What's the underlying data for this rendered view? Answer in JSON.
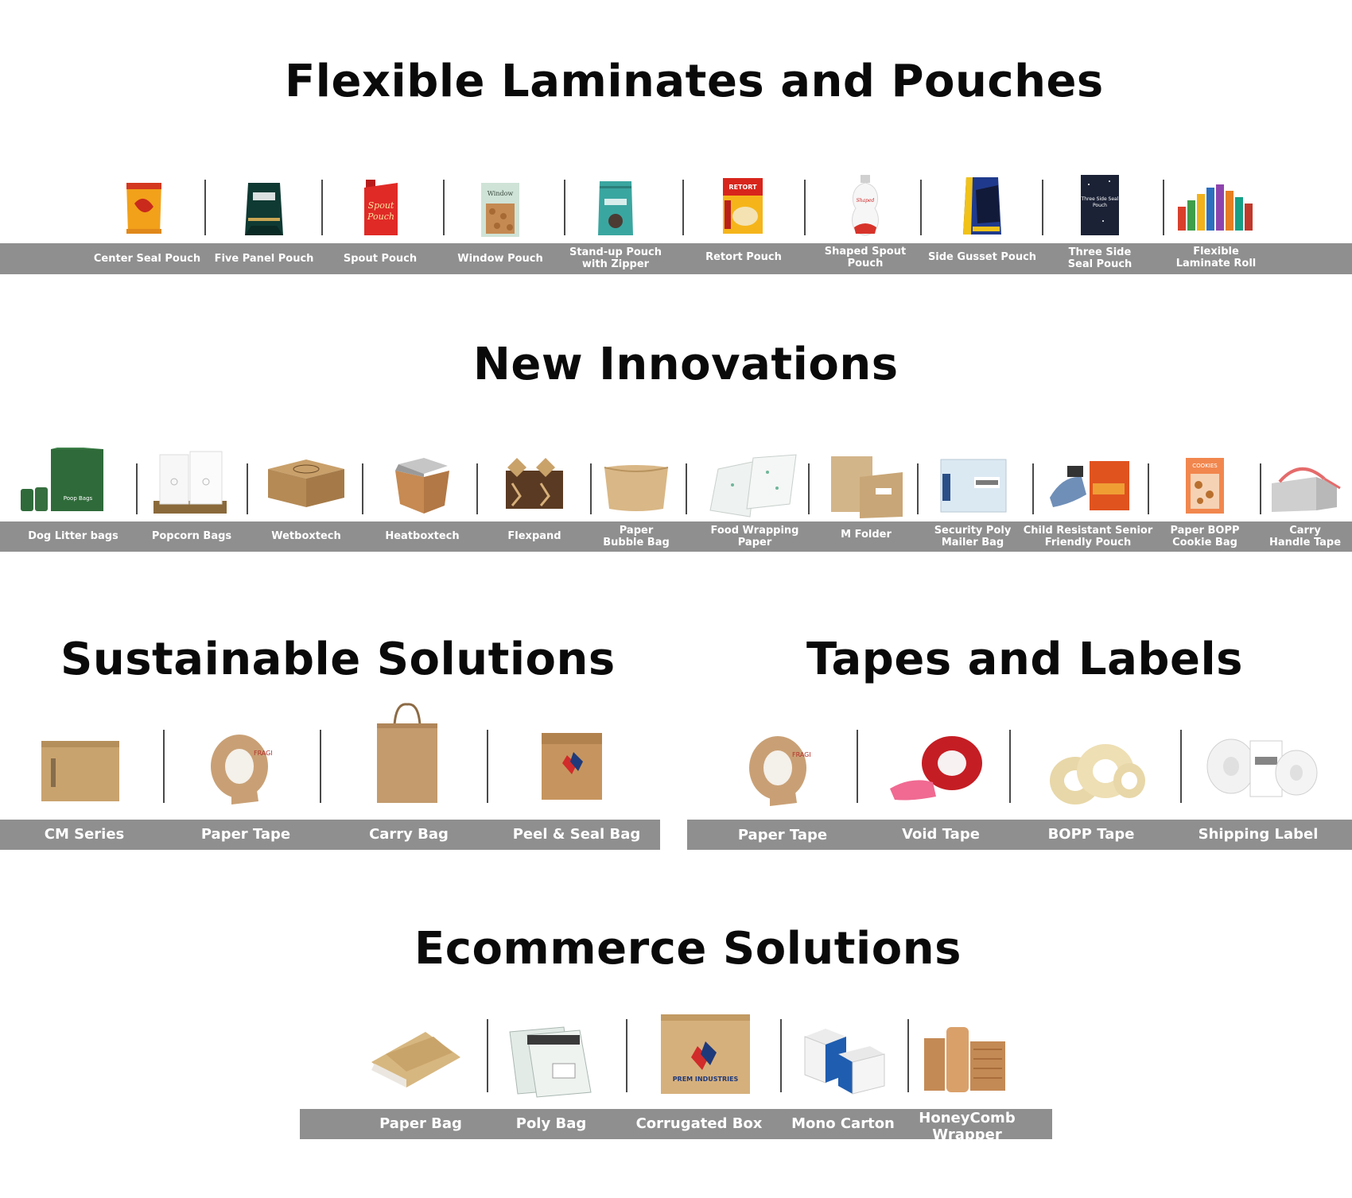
{
  "sections": {
    "flexible": {
      "title": "Flexible Laminates and Pouches",
      "items": [
        {
          "label": "Center Seal Pouch",
          "icon": "center-seal-pouch-icon"
        },
        {
          "label": "Five Panel Pouch",
          "icon": "five-panel-pouch-icon"
        },
        {
          "label": "Spout Pouch",
          "icon": "spout-pouch-icon"
        },
        {
          "label": "Window Pouch",
          "icon": "window-pouch-icon"
        },
        {
          "label": "Stand-up Pouch\nwith Zipper",
          "icon": "stand-up-pouch-icon"
        },
        {
          "label": "Retort Pouch",
          "icon": "retort-pouch-icon"
        },
        {
          "label": "Shaped Spout\nPouch",
          "icon": "shaped-spout-pouch-icon"
        },
        {
          "label": "Side Gusset Pouch",
          "icon": "side-gusset-pouch-icon"
        },
        {
          "label": "Three Side\nSeal Pouch",
          "icon": "three-side-seal-pouch-icon"
        },
        {
          "label": "Flexible\nLaminate Roll",
          "icon": "laminate-roll-icon"
        }
      ]
    },
    "innovations": {
      "title": "New Innovations",
      "items": [
        {
          "label": "Dog Litter bags",
          "icon": "dog-litter-bags-icon"
        },
        {
          "label": "Popcorn Bags",
          "icon": "popcorn-bags-icon"
        },
        {
          "label": "Wetboxtech",
          "icon": "wetboxtech-icon"
        },
        {
          "label": "Heatboxtech",
          "icon": "heatboxtech-icon"
        },
        {
          "label": "Flexpand",
          "icon": "flexpand-icon"
        },
        {
          "label": "Paper\nBubble Bag",
          "icon": "paper-bubble-bag-icon"
        },
        {
          "label": "Food Wrapping\nPaper",
          "icon": "food-wrapping-paper-icon"
        },
        {
          "label": "M Folder",
          "icon": "m-folder-icon"
        },
        {
          "label": "Security Poly\nMailer Bag",
          "icon": "security-mailer-icon"
        },
        {
          "label": "Child Resistant Senior\nFriendly Pouch",
          "icon": "child-resistant-pouch-icon"
        },
        {
          "label": "Paper BOPP\nCookie Bag",
          "icon": "cookie-bag-icon"
        },
        {
          "label": "Carry\nHandle Tape",
          "icon": "carry-handle-tape-icon"
        }
      ]
    },
    "sustainable": {
      "title": "Sustainable Solutions",
      "items": [
        {
          "label": "CM Series",
          "icon": "cm-series-icon"
        },
        {
          "label": "Paper Tape",
          "icon": "paper-tape-icon"
        },
        {
          "label": "Carry Bag",
          "icon": "carry-bag-icon"
        },
        {
          "label": "Peel & Seal Bag",
          "icon": "peel-seal-bag-icon"
        }
      ]
    },
    "tapes": {
      "title": "Tapes and Labels",
      "items": [
        {
          "label": "Paper Tape",
          "icon": "paper-tape-icon"
        },
        {
          "label": "Void Tape",
          "icon": "void-tape-icon"
        },
        {
          "label": "BOPP Tape",
          "icon": "bopp-tape-icon"
        },
        {
          "label": "Shipping Label",
          "icon": "shipping-label-icon"
        }
      ]
    },
    "ecommerce": {
      "title": "Ecommerce Solutions",
      "items": [
        {
          "label": "Paper Bag",
          "icon": "paper-bag-icon"
        },
        {
          "label": "Poly Bag",
          "icon": "poly-bag-icon"
        },
        {
          "label": "Corrugated Box",
          "icon": "corrugated-box-icon"
        },
        {
          "label": "Mono Carton",
          "icon": "mono-carton-icon"
        },
        {
          "label": "HoneyComb\nWrapper",
          "icon": "honeycomb-wrapper-icon"
        }
      ]
    }
  },
  "colors": {
    "band": "#8f8f8f",
    "title": "#0a0a0a",
    "label": "#ffffff",
    "separator": "#4a4a4a"
  }
}
